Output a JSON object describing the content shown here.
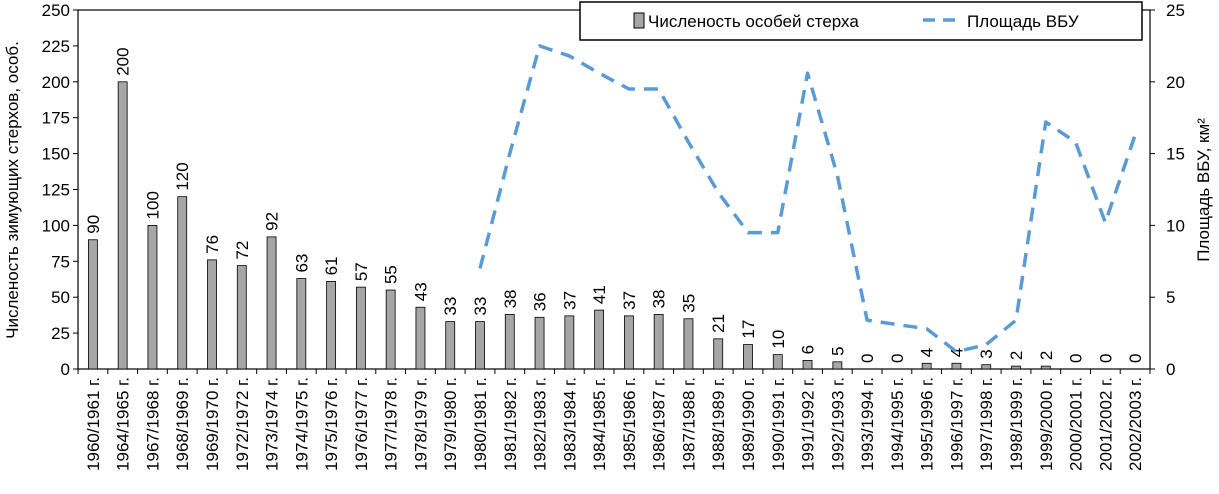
{
  "chart_data": {
    "type": "bar",
    "categories": [
      "1960/1961 г.",
      "1964/1965 г.",
      "1967/1968 г.",
      "1968/1969 г.",
      "1969/1970 г.",
      "1972/1972 г.",
      "1973/1974 г.",
      "1974/1975 г.",
      "1975/1976 г.",
      "1976/1977 г.",
      "1977/1978 г.",
      "1978/1979 г.",
      "1979/1980 г.",
      "1980/1981 г.",
      "1981/1982 г.",
      "1982/1983 г.",
      "1983/1984 г.",
      "1984/1985 г.",
      "1985/1986 г.",
      "1986/1987 г.",
      "1987/1988 г.",
      "1988/1989 г.",
      "1989/1990 г.",
      "1990/1991 г.",
      "1991/1992 г.",
      "1992/1993 г.",
      "1993/1994 г.",
      "1994/1995 г.",
      "1995/1996 г.",
      "1996/1997 г.",
      "1997/1998 г.",
      "1998/1999 г.",
      "1999/2000 г.",
      "2000/2001 г.",
      "2001/2002 г.",
      "2002/2003 г."
    ],
    "series": [
      {
        "name": "Численость особей стерха",
        "kind": "bar",
        "axis": "left",
        "color": "#a6a6a6",
        "values": [
          90,
          200,
          100,
          120,
          76,
          72,
          92,
          63,
          61,
          57,
          55,
          43,
          33,
          33,
          38,
          36,
          37,
          41,
          37,
          38,
          35,
          21,
          17,
          10,
          6,
          5,
          0,
          0,
          4,
          4,
          3,
          2,
          2,
          0,
          0,
          0
        ]
      },
      {
        "name": "Площадь ВБУ",
        "kind": "line",
        "axis": "right",
        "color": "#5b9bd5",
        "values": [
          null,
          null,
          null,
          null,
          null,
          null,
          null,
          null,
          null,
          null,
          null,
          null,
          null,
          7,
          15,
          22.5,
          21.8,
          20.6,
          19.5,
          19.5,
          15.8,
          12.3,
          9.5,
          9.5,
          20.6,
          13.5,
          3.4,
          3.1,
          2.8,
          1.2,
          1.7,
          3.4,
          17.2,
          15.8,
          10.2,
          16.3
        ]
      }
    ],
    "data_labels": [
      "90",
      "200",
      "100",
      "120",
      "76",
      "72",
      "92",
      "63",
      "61",
      "57",
      "55",
      "43",
      "33",
      "33",
      "38",
      "36",
      "37",
      "41",
      "37",
      "38",
      "35",
      "21",
      "17",
      "10",
      "6",
      "5",
      "0",
      "0",
      "4",
      "4",
      "3",
      "2",
      "2",
      "0",
      "0",
      "0"
    ],
    "ylabel": "Численость зимующих стерхов, особ.",
    "y2label": "Площадь ВБУ, км²",
    "ylim": [
      0,
      250
    ],
    "y2lim": [
      0,
      25
    ],
    "yticks": [
      "0",
      "25",
      "50",
      "75",
      "100",
      "125",
      "150",
      "175",
      "200",
      "225",
      "250"
    ],
    "y2ticks": [
      "0",
      "5",
      "10",
      "15",
      "20",
      "25"
    ],
    "legend_position": "top-right",
    "grid": false
  }
}
